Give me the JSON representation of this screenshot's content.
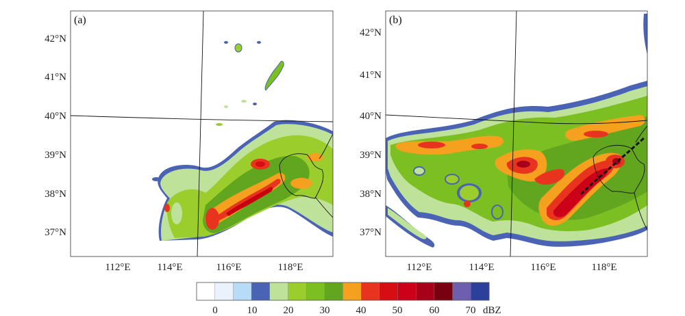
{
  "panels": [
    {
      "label": "(a)",
      "lat_ticks": [
        "42°N",
        "41°N",
        "40°N",
        "39°N",
        "38°N",
        "37°N"
      ],
      "lon_ticks": [
        "112°E",
        "114°E",
        "116°E",
        "118°E"
      ]
    },
    {
      "label": "(b)",
      "lat_ticks": [
        "42°N",
        "41°N",
        "40°N",
        "39°N",
        "38°N",
        "37°N"
      ],
      "lon_ticks": [
        "112°E",
        "114°E",
        "116°E",
        "118°E"
      ]
    }
  ],
  "colorbar": {
    "colors": [
      "#ffffff",
      "#eaf2fb",
      "#b8dcf7",
      "#4b63b4",
      "#bfe29a",
      "#9bcd2c",
      "#7cbf22",
      "#62a51f",
      "#f5a01e",
      "#e8341e",
      "#d60d12",
      "#cc0018",
      "#a8001a",
      "#780010",
      "#6e5eb0",
      "#2c3f9a"
    ],
    "tick_labels": [
      "0",
      "10",
      "20",
      "30",
      "40",
      "50",
      "60",
      "70"
    ],
    "unit": "dBZ"
  }
}
